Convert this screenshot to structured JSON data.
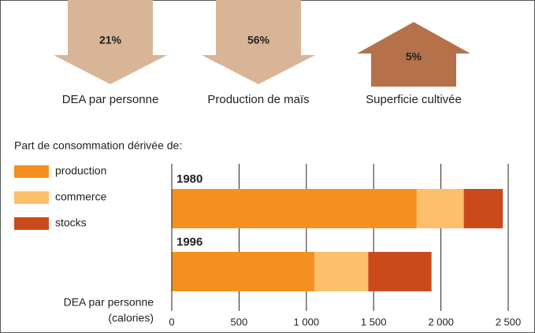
{
  "indicators": [
    {
      "label": "DEA par personne",
      "value": 21,
      "value_label": "21%",
      "direction": "down",
      "color": "#d8b596"
    },
    {
      "label": "Production de maïs",
      "value": 56,
      "value_label": "56%",
      "direction": "down",
      "color": "#d8b596"
    },
    {
      "label": "Superficie cultivée",
      "value": 5,
      "value_label": "5%",
      "direction": "up",
      "color": "#b5714a"
    }
  ],
  "chart_data": {
    "type": "stacked-barh",
    "legend_title": "Part de consommation dérivée de:",
    "categories": [
      "1980",
      "1996"
    ],
    "series": [
      {
        "name": "production",
        "color": "#f58f1f",
        "values": [
          1820,
          1060
        ]
      },
      {
        "name": "commerce",
        "color": "#fdbf6a",
        "values": [
          350,
          400
        ]
      },
      {
        "name": "stocks",
        "color": "#cb4a1b",
        "values": [
          290,
          470
        ]
      }
    ],
    "xlabel": [
      "DEA par personne",
      "(calories)"
    ],
    "xlim": [
      0,
      2500
    ],
    "xticks": [
      0,
      500,
      {
        "value": 1000,
        "label": "1 000"
      },
      {
        "value": 1500,
        "label": "1 500"
      },
      {
        "value": 2000,
        "label": "2 000"
      },
      {
        "value": 2500,
        "label": "2 500"
      }
    ],
    "grid": true
  }
}
